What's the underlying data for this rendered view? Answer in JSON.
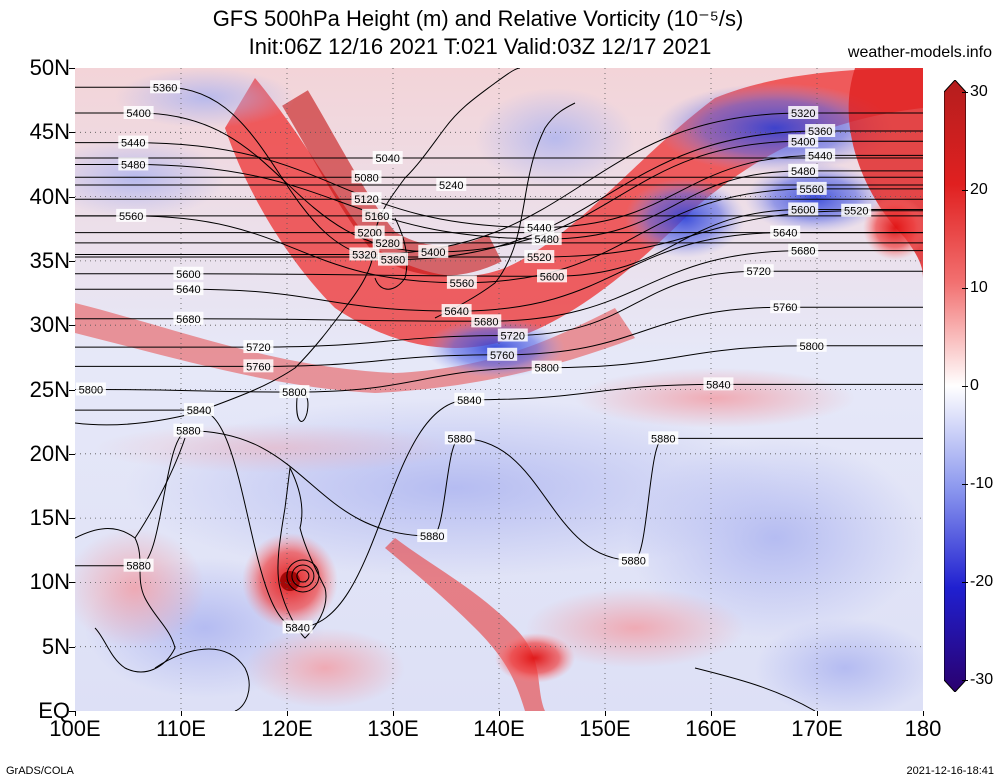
{
  "title_line1": "GFS 500hPa Height (m) and Relative Vorticity (10⁻⁵/s)",
  "title_line2": "Init:06Z 12/16 2021 T:021 Valid:03Z 12/17 2021",
  "source": "weather-models.info",
  "footer_left": "GrADS/COLA",
  "footer_right": "2021-12-16-18:41",
  "lat_labels": [
    "50N",
    "45N",
    "40N",
    "35N",
    "30N",
    "25N",
    "20N",
    "15N",
    "10N",
    "5N",
    "EQ"
  ],
  "lon_labels": [
    "100E",
    "110E",
    "120E",
    "130E",
    "140E",
    "150E",
    "160E",
    "170E",
    "180"
  ],
  "colorbar_labels": [
    "30",
    "20",
    "10",
    "0",
    "-10",
    "-20",
    "-30"
  ],
  "colors": {
    "positive_max": "#b40000",
    "positive": "#ff2020",
    "neutral": "#ffffff",
    "negative": "#3040e0",
    "negative_max": "#2a006e",
    "contour": "#000000"
  },
  "contour_labels": [
    {
      "text": "5360",
      "lon": 108.5,
      "lat": 48.5
    },
    {
      "text": "5400",
      "lon": 106.0,
      "lat": 46.5
    },
    {
      "text": "5440",
      "lon": 105.5,
      "lat": 44.2
    },
    {
      "text": "5480",
      "lon": 105.5,
      "lat": 42.5
    },
    {
      "text": "5560",
      "lon": 105.3,
      "lat": 38.5
    },
    {
      "text": "5600",
      "lon": 110.7,
      "lat": 34.0
    },
    {
      "text": "5640",
      "lon": 110.7,
      "lat": 32.8
    },
    {
      "text": "5680",
      "lon": 110.7,
      "lat": 30.5
    },
    {
      "text": "5720",
      "lon": 117.3,
      "lat": 28.3
    },
    {
      "text": "5760",
      "lon": 117.3,
      "lat": 26.8
    },
    {
      "text": "5800",
      "lon": 101.5,
      "lat": 25.0
    },
    {
      "text": "5800",
      "lon": 120.7,
      "lat": 24.8
    },
    {
      "text": "5840",
      "lon": 111.7,
      "lat": 23.4
    },
    {
      "text": "5880",
      "lon": 110.7,
      "lat": 21.8
    },
    {
      "text": "5040",
      "lon": 129.5,
      "lat": 43.0
    },
    {
      "text": "5080",
      "lon": 127.5,
      "lat": 41.5
    },
    {
      "text": "5120",
      "lon": 127.5,
      "lat": 39.8
    },
    {
      "text": "5160",
      "lon": 128.5,
      "lat": 38.5
    },
    {
      "text": "5200",
      "lon": 127.8,
      "lat": 37.2
    },
    {
      "text": "5240",
      "lon": 135.5,
      "lat": 40.9
    },
    {
      "text": "5280",
      "lon": 129.5,
      "lat": 36.4
    },
    {
      "text": "5320",
      "lon": 127.3,
      "lat": 35.5
    },
    {
      "text": "5360",
      "lon": 130.0,
      "lat": 35.1
    },
    {
      "text": "5400",
      "lon": 133.8,
      "lat": 35.7
    },
    {
      "text": "5440",
      "lon": 143.8,
      "lat": 37.6
    },
    {
      "text": "5480",
      "lon": 144.5,
      "lat": 36.7
    },
    {
      "text": "5520",
      "lon": 143.8,
      "lat": 35.3
    },
    {
      "text": "5560",
      "lon": 136.5,
      "lat": 33.3
    },
    {
      "text": "5600",
      "lon": 145.0,
      "lat": 33.8
    },
    {
      "text": "5640",
      "lon": 136.0,
      "lat": 31.1
    },
    {
      "text": "5680",
      "lon": 138.8,
      "lat": 30.3
    },
    {
      "text": "5720",
      "lon": 141.3,
      "lat": 29.2
    },
    {
      "text": "5760",
      "lon": 140.3,
      "lat": 27.7
    },
    {
      "text": "5800",
      "lon": 144.5,
      "lat": 26.7
    },
    {
      "text": "5840",
      "lon": 137.2,
      "lat": 24.2
    },
    {
      "text": "5880",
      "lon": 136.3,
      "lat": 21.2
    },
    {
      "text": "5880",
      "lon": 133.7,
      "lat": 13.6
    },
    {
      "text": "5880",
      "lon": 152.7,
      "lat": 11.7
    },
    {
      "text": "5880",
      "lon": 155.5,
      "lat": 21.2
    },
    {
      "text": "5840",
      "lon": 160.7,
      "lat": 25.4
    },
    {
      "text": "5800",
      "lon": 169.5,
      "lat": 28.4
    },
    {
      "text": "5760",
      "lon": 167.0,
      "lat": 31.4
    },
    {
      "text": "5720",
      "lon": 164.5,
      "lat": 34.2
    },
    {
      "text": "5680",
      "lon": 168.7,
      "lat": 35.8
    },
    {
      "text": "5640",
      "lon": 167.0,
      "lat": 37.2
    },
    {
      "text": "5600",
      "lon": 168.7,
      "lat": 39.0
    },
    {
      "text": "5560",
      "lon": 169.5,
      "lat": 40.6
    },
    {
      "text": "5520",
      "lon": 173.7,
      "lat": 38.9
    },
    {
      "text": "5480",
      "lon": 168.7,
      "lat": 42.0
    },
    {
      "text": "5440",
      "lon": 170.3,
      "lat": 43.2
    },
    {
      "text": "5400",
      "lon": 168.7,
      "lat": 44.3
    },
    {
      "text": "5360",
      "lon": 170.3,
      "lat": 45.1
    },
    {
      "text": "5320",
      "lon": 168.7,
      "lat": 46.5
    },
    {
      "text": "5880",
      "lon": 106.0,
      "lat": 11.3
    },
    {
      "text": "5840",
      "lon": 121.0,
      "lat": 6.5
    }
  ]
}
